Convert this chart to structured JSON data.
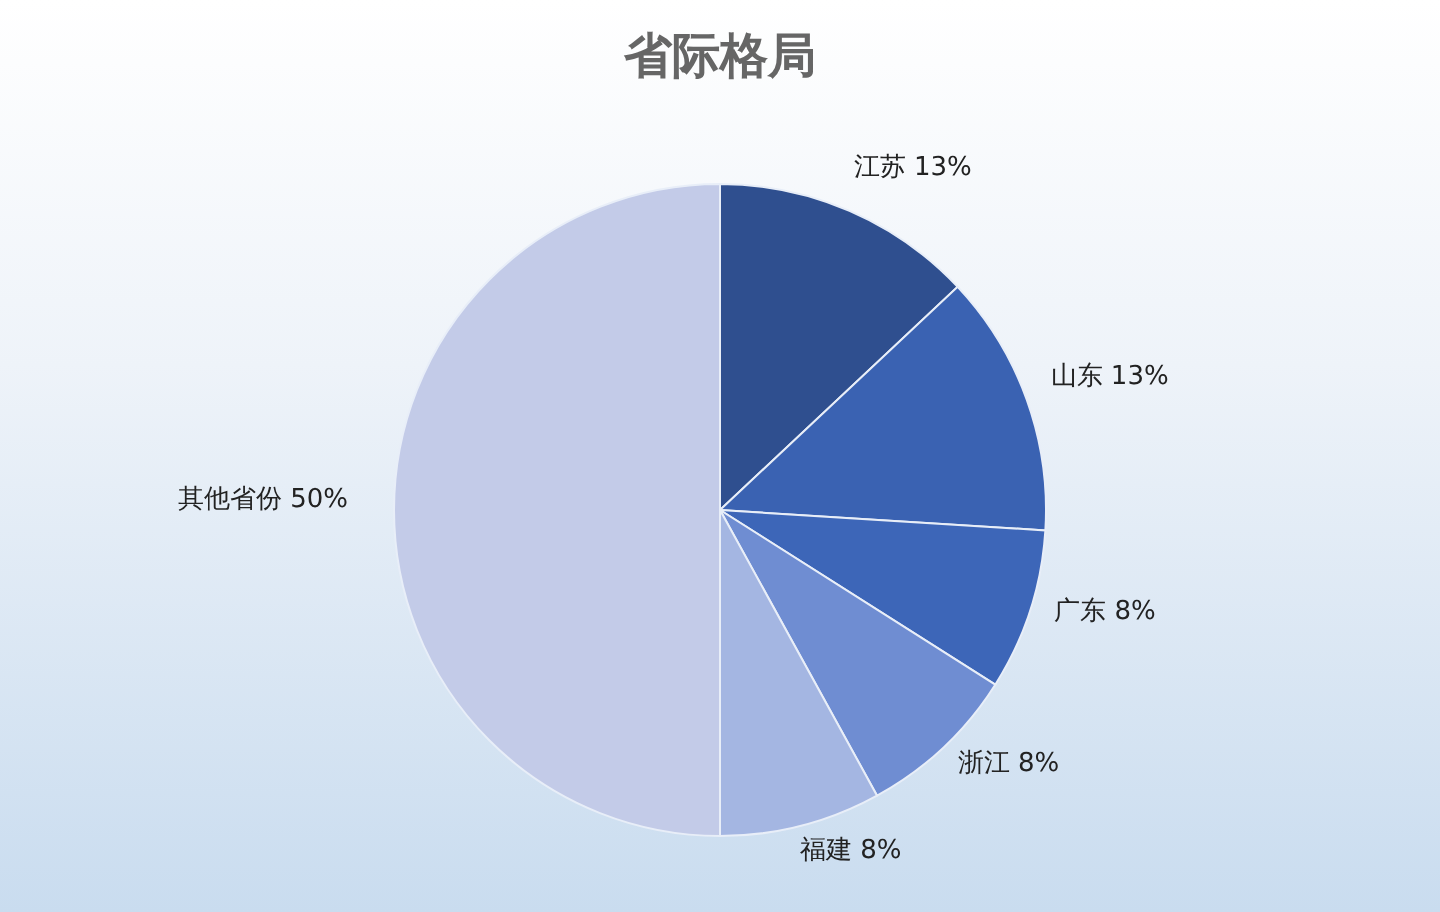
{
  "chart_data": {
    "type": "pie",
    "title": "省际格局",
    "categories": [
      "江苏",
      "山东",
      "广东",
      "浙江",
      "福建",
      "其他省份"
    ],
    "values": [
      13,
      13,
      8,
      8,
      8,
      50
    ],
    "value_labels": [
      "13%",
      "13%",
      "8%",
      "8%",
      "8%",
      "50%"
    ],
    "colors": [
      "#2f4f8f",
      "#3a62b2",
      "#3d66b8",
      "#6f8dd2",
      "#a4b6e2",
      "#c3cbe8"
    ],
    "legend": false
  }
}
